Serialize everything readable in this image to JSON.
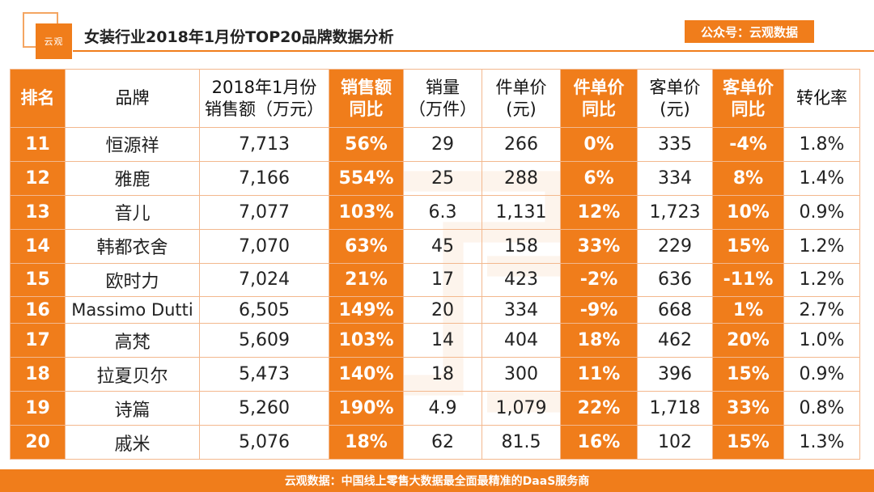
{
  "header": {
    "logo_text": "云观",
    "title": "女装行业2018年1月份TOP20品牌数据分析",
    "account": "公众号：云观数据"
  },
  "table": {
    "columns": [
      [
        "排名"
      ],
      [
        "品牌"
      ],
      [
        "2018年1月份",
        "销售额（万元）"
      ],
      [
        "销售额",
        "同比"
      ],
      [
        "销量",
        "（万件）"
      ],
      [
        "件单价",
        "(元)"
      ],
      [
        "件单价",
        "同比"
      ],
      [
        "客单价",
        "(元)"
      ],
      [
        "客单价",
        "同比"
      ],
      [
        "转化率"
      ]
    ],
    "rows": [
      [
        "11",
        "恒源祥",
        "7,713",
        "56%",
        "29",
        "266",
        "0%",
        "335",
        "-4%",
        "1.8%"
      ],
      [
        "12",
        "雅鹿",
        "7,166",
        "554%",
        "25",
        "288",
        "6%",
        "334",
        "8%",
        "1.4%"
      ],
      [
        "13",
        "音儿",
        "7,077",
        "103%",
        "6.3",
        "1,131",
        "12%",
        "1,723",
        "10%",
        "0.9%"
      ],
      [
        "14",
        "韩都衣舍",
        "7,070",
        "63%",
        "45",
        "158",
        "33%",
        "229",
        "15%",
        "1.2%"
      ],
      [
        "15",
        "欧时力",
        "7,024",
        "21%",
        "17",
        "423",
        "-2%",
        "636",
        "-11%",
        "1.2%"
      ],
      [
        "16",
        "Massimo Dutti",
        "6,505",
        "149%",
        "20",
        "334",
        "-9%",
        "668",
        "1%",
        "2.7%"
      ],
      [
        "17",
        "高梵",
        "5,609",
        "103%",
        "14",
        "404",
        "18%",
        "462",
        "20%",
        "1.0%"
      ],
      [
        "18",
        "拉夏贝尔",
        "5,473",
        "140%",
        "18",
        "300",
        "11%",
        "396",
        "15%",
        "0.9%"
      ],
      [
        "19",
        "诗篇",
        "5,260",
        "190%",
        "4.9",
        "1,079",
        "22%",
        "1,718",
        "33%",
        "0.8%"
      ],
      [
        "20",
        "戚米",
        "5,076",
        "18%",
        "62",
        "81.5",
        "16%",
        "102",
        "15%",
        "1.3%"
      ]
    ]
  },
  "footer": {
    "text": "云观数据：中国线上零售大数据最全面最精准的DaaS服务商"
  },
  "colors": {
    "accent": "#f07d1b",
    "border": "#f3b88e"
  }
}
